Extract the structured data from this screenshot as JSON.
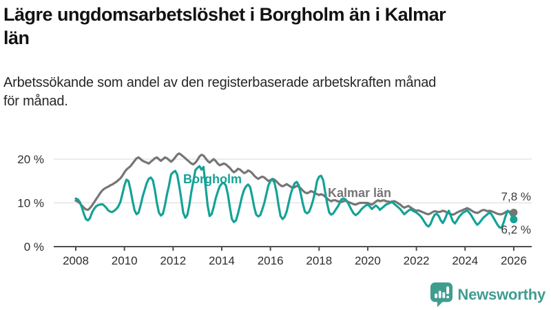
{
  "header": {
    "title_line1": "Lägre ungdomsarbetslöshet i Borgholm än i Kalmar",
    "title_line2": "län",
    "subtitle_line1": "Arbetssökande som andel av den registerbaserade arbetskraften månad",
    "subtitle_line2": "för månad."
  },
  "chart_data": {
    "type": "line",
    "title": "Lägre ungdomsarbetslöshet i Borgholm än i Kalmar län",
    "subtitle": "Arbetssökande som andel av den registerbaserade arbetskraften månad för månad.",
    "x_unit": "month",
    "x_start": "2008-01",
    "x_end": "2026-01",
    "ylim": [
      0,
      22
    ],
    "yticks": [
      0,
      10,
      20
    ],
    "ytick_suffix": " %",
    "xticks": [
      2008,
      2010,
      2012,
      2014,
      2016,
      2018,
      2020,
      2022,
      2024,
      2026
    ],
    "grid": "horizontal",
    "legend_position": "inline-labels",
    "series": [
      {
        "name": "Kalmar län",
        "color": "#757575",
        "end_label": "7,8 %",
        "end_value": 7.8,
        "values": [
          10.5,
          10.3,
          9.9,
          9.4,
          8.9,
          8.5,
          8.4,
          8.8,
          9.4,
          10.1,
          10.8,
          11.5,
          12.2,
          12.8,
          13.2,
          13.5,
          13.7,
          14.0,
          14.2,
          14.5,
          14.8,
          15.2,
          15.6,
          16.2,
          17.0,
          17.6,
          18.0,
          18.4,
          19.0,
          19.6,
          20.2,
          20.4,
          20.0,
          19.6,
          19.4,
          19.2,
          19.0,
          19.4,
          19.8,
          20.2,
          20.4,
          20.0,
          19.6,
          20.0,
          20.4,
          20.2,
          19.8,
          19.4,
          19.8,
          20.4,
          21.0,
          21.3,
          21.0,
          20.6,
          20.2,
          19.8,
          19.4,
          19.0,
          18.8,
          19.2,
          19.8,
          20.6,
          21.0,
          20.8,
          20.2,
          19.6,
          19.2,
          19.6,
          20.0,
          19.6,
          19.0,
          18.6,
          18.8,
          19.0,
          18.8,
          18.4,
          18.0,
          17.4,
          17.0,
          17.3,
          17.8,
          17.6,
          17.2,
          16.8,
          17.0,
          17.4,
          17.2,
          16.8,
          16.2,
          15.8,
          15.5,
          15.8,
          16.0,
          15.8,
          15.4,
          15.0,
          15.2,
          15.5,
          15.3,
          14.9,
          14.4,
          14.0,
          13.8,
          14.0,
          14.3,
          14.0,
          13.7,
          13.4,
          13.6,
          13.9,
          13.7,
          13.3,
          12.8,
          12.4,
          12.2,
          12.4,
          12.7,
          12.5,
          12.2,
          12.0,
          11.8,
          12.0,
          11.8,
          11.4,
          11.0,
          10.6,
          10.4,
          10.6,
          10.6,
          10.4,
          10.3,
          10.2,
          10.4,
          10.5,
          10.3,
          10.1,
          9.9,
          9.7,
          9.6,
          9.8,
          10.0,
          10.0,
          10.0,
          10.0,
          10.0,
          9.8,
          9.6,
          9.9,
          10.3,
          10.6,
          10.4,
          10.5,
          10.6,
          10.4,
          10.3,
          10.2,
          10.3,
          10.4,
          10.2,
          9.9,
          9.6,
          9.2,
          8.9,
          9.1,
          9.3,
          9.0,
          8.7,
          8.4,
          8.2,
          8.3,
          8.1,
          7.9,
          7.7,
          7.5,
          7.4,
          7.6,
          7.9,
          8.1,
          8.0,
          7.9,
          8.0,
          8.2,
          8.1,
          7.8,
          7.6,
          7.4,
          7.3,
          7.5,
          7.8,
          8.0,
          8.2,
          8.4,
          8.6,
          8.8,
          8.6,
          8.3,
          8.0,
          7.8,
          7.7,
          7.9,
          8.2,
          8.4,
          8.3,
          8.1,
          8.2,
          8.1,
          7.9,
          7.7,
          7.5,
          7.4,
          7.4,
          7.6,
          7.9,
          8.1,
          8.0,
          7.9,
          7.8
        ]
      },
      {
        "name": "Borgholm",
        "color": "#14a296",
        "end_label": "6,2 %",
        "end_value": 6.2,
        "values": [
          11.0,
          10.8,
          10.2,
          9.0,
          7.5,
          6.3,
          6.0,
          6.5,
          7.8,
          8.6,
          9.2,
          9.5,
          9.6,
          9.7,
          9.4,
          8.9,
          8.3,
          8.0,
          7.9,
          8.2,
          8.6,
          9.2,
          10.2,
          12.0,
          14.0,
          15.3,
          15.0,
          13.0,
          10.5,
          8.3,
          7.4,
          7.8,
          9.5,
          11.5,
          13.0,
          14.5,
          15.5,
          15.8,
          15.2,
          13.0,
          10.0,
          7.8,
          7.1,
          7.5,
          9.5,
          12.0,
          14.0,
          16.5,
          17.0,
          17.3,
          16.5,
          14.0,
          11.0,
          7.8,
          6.6,
          7.2,
          9.5,
          12.5,
          15.0,
          17.5,
          18.0,
          18.4,
          17.6,
          18.2,
          14.0,
          9.5,
          7.0,
          7.4,
          9.0,
          11.0,
          12.5,
          13.8,
          14.4,
          14.6,
          14.0,
          12.0,
          9.0,
          6.3,
          5.6,
          6.0,
          7.5,
          9.5,
          11.5,
          13.0,
          13.8,
          14.2,
          13.6,
          11.5,
          9.0,
          7.3,
          6.9,
          7.2,
          8.5,
          10.0,
          12.0,
          14.0,
          15.0,
          15.4,
          14.6,
          12.5,
          9.5,
          7.0,
          6.3,
          6.8,
          8.0,
          10.0,
          12.0,
          13.5,
          14.5,
          14.8,
          14.0,
          12.0,
          9.8,
          8.0,
          7.6,
          7.9,
          9.0,
          10.5,
          12.5,
          15.0,
          16.0,
          16.2,
          15.2,
          12.5,
          9.8,
          7.8,
          7.3,
          7.6,
          8.3,
          9.0,
          9.8,
          10.8,
          11.0,
          10.8,
          10.2,
          9.3,
          8.4,
          7.6,
          7.2,
          7.5,
          8.0,
          8.6,
          9.0,
          9.4,
          9.6,
          9.2,
          8.6,
          9.0,
          9.4,
          9.0,
          8.4,
          8.8,
          9.2,
          9.6,
          9.8,
          10.0,
          10.2,
          9.8,
          9.4,
          9.0,
          8.6,
          8.0,
          7.4,
          7.8,
          8.2,
          8.5,
          8.3,
          8.0,
          7.8,
          7.4,
          7.0,
          6.4,
          5.6,
          4.9,
          4.6,
          5.2,
          6.4,
          7.3,
          7.5,
          7.0,
          6.0,
          5.4,
          6.2,
          7.4,
          8.2,
          7.0,
          5.8,
          5.3,
          6.0,
          6.8,
          7.3,
          7.8,
          8.0,
          8.3,
          7.8,
          7.2,
          6.4,
          5.6,
          5.0,
          5.4,
          6.0,
          6.6,
          7.0,
          7.4,
          7.8,
          7.4,
          6.6,
          5.8,
          5.0,
          4.4,
          4.3,
          5.5,
          7.0,
          8.2,
          7.8,
          7.0,
          6.2
        ]
      }
    ]
  },
  "annotations": {
    "kalmar_end_label": "7,8 %",
    "borgholm_end_label": "6,2 %"
  },
  "footer": {
    "brand": "Newsworthy",
    "brand_color": "#3f9d90"
  },
  "colors": {
    "background": "#ffffff",
    "title_text": "#121212",
    "axis_text": "#2e2e2e",
    "axis_line": "#4d4d4d",
    "gridline": "#d9d9d9",
    "borgholm_line": "#14a296",
    "kalmar_line": "#757575"
  }
}
